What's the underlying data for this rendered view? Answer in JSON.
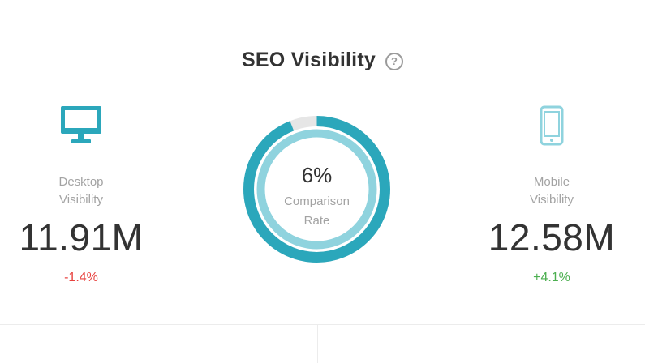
{
  "header": {
    "title": "SEO Visibility",
    "help_icon": "question-circle-icon"
  },
  "desktop": {
    "icon": "desktop-monitor-icon",
    "label_line1": "Desktop",
    "label_line2": "Visibility",
    "value": "11.91M",
    "change": "-1.4%"
  },
  "mobile": {
    "icon": "mobile-phone-icon",
    "label_line1": "Mobile",
    "label_line2": "Visibility",
    "value": "12.58M",
    "change": "+4.1%"
  },
  "comparison": {
    "percent_text": "6%",
    "percent_value": 6,
    "label_line1": "Comparison",
    "label_line2": "Rate"
  },
  "colors": {
    "accent_dark": "#2ba7bb",
    "accent_light": "#8fd3de",
    "track_gray": "#e6e6e6",
    "negative": "#e8423f",
    "positive": "#4caf50"
  }
}
